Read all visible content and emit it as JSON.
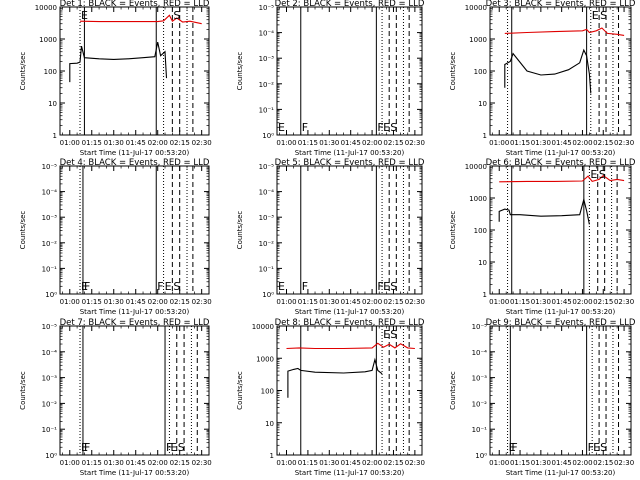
{
  "figure": {
    "xlabel": "Start Time (11-Jul-17 00:53:20)",
    "ylabel": "Counts/sec",
    "x_tick_labels": [
      "01:00",
      "01:15",
      "01:30",
      "01:45",
      "02:00",
      "02:15",
      "02:30"
    ],
    "log_tick_labels_full": [
      "1",
      "10",
      "100",
      "1000",
      "10000"
    ],
    "log_tick_labels_empty": [
      "10⁰",
      "10⁻¹",
      "10⁻²",
      "10⁻³",
      "10⁻⁴",
      "10⁻⁵"
    ],
    "colors": {
      "events": "#000000",
      "lld": "#e00000",
      "axes": "#000000"
    }
  },
  "chart_data": [
    {
      "type": "line",
      "title": "Det 1: BLACK = Events, RED = LLD",
      "scale": "log",
      "ylim": [
        1,
        10000
      ],
      "xlim": [
        "00:53:20",
        "02:35"
      ],
      "markers": [
        {
          "x": "01:07",
          "style": "dotted",
          "label": "E"
        },
        {
          "x": "01:10",
          "style": "solid",
          "label": ""
        },
        {
          "x": "01:59",
          "style": "solid",
          "label": ""
        },
        {
          "x": "02:04",
          "style": "dotted",
          "label": ""
        },
        {
          "x": "02:10",
          "style": "dashed",
          "label": "S"
        },
        {
          "x": "02:15",
          "style": "dashed",
          "label": ""
        },
        {
          "x": "02:20",
          "style": "dotted",
          "label": ""
        },
        {
          "x": "02:24",
          "style": "dashed",
          "label": ""
        }
      ],
      "series": [
        {
          "name": "Events",
          "color": "#000000",
          "points": [
            [
              "01:00",
              45
            ],
            [
              "01:00",
              170
            ],
            [
              "01:05",
              175
            ],
            [
              "01:07",
              190
            ],
            [
              "01:08",
              600
            ],
            [
              "01:10",
              260
            ],
            [
              "01:20",
              240
            ],
            [
              "01:30",
              230
            ],
            [
              "01:40",
              240
            ],
            [
              "01:50",
              260
            ],
            [
              "01:58",
              280
            ],
            [
              "02:00",
              800
            ],
            [
              "02:02",
              300
            ],
            [
              "02:05",
              400
            ],
            [
              "02:06",
              60
            ]
          ]
        },
        {
          "name": "LLD",
          "color": "#e00000",
          "points": [
            [
              "01:07",
              3600
            ],
            [
              "01:20",
              3500
            ],
            [
              "01:40",
              3500
            ],
            [
              "02:00",
              3500
            ],
            [
              "02:04",
              3700
            ],
            [
              "02:08",
              5500
            ],
            [
              "02:10",
              3600
            ],
            [
              "02:13",
              4500
            ],
            [
              "02:17",
              3400
            ],
            [
              "02:22",
              3600
            ],
            [
              "02:26",
              3300
            ],
            [
              "02:30",
              3000
            ]
          ]
        }
      ]
    },
    {
      "type": "line",
      "title": "Det 2: BLACK = Events, RED = LLD",
      "scale": "log_empty",
      "markers": [
        {
          "x": "00:53:20",
          "style": "solid",
          "label": "E"
        },
        {
          "x": "01:10",
          "style": "solid",
          "label": "F"
        },
        {
          "x": "02:03",
          "style": "solid",
          "label": "F"
        },
        {
          "x": "02:07",
          "style": "dotted",
          "label": "E"
        },
        {
          "x": "02:12",
          "style": "dashed",
          "label": "S"
        },
        {
          "x": "02:17",
          "style": "dashed",
          "label": ""
        },
        {
          "x": "02:22",
          "style": "dotted",
          "label": ""
        },
        {
          "x": "02:26",
          "style": "dashed",
          "label": ""
        }
      ],
      "series": []
    },
    {
      "type": "line",
      "title": "Det 3: BLACK = Events, RED = LLD",
      "scale": "log",
      "ylim": [
        1,
        10000
      ],
      "markers": [
        {
          "x": "01:06",
          "style": "dotted",
          "label": ""
        },
        {
          "x": "01:09",
          "style": "solid",
          "label": ""
        },
        {
          "x": "02:03",
          "style": "solid",
          "label": ""
        },
        {
          "x": "02:06",
          "style": "dotted",
          "label": "E"
        },
        {
          "x": "02:12",
          "style": "dashed",
          "label": "S"
        },
        {
          "x": "02:17",
          "style": "dashed",
          "label": ""
        },
        {
          "x": "02:22",
          "style": "dotted",
          "label": ""
        },
        {
          "x": "02:26",
          "style": "dashed",
          "label": ""
        }
      ],
      "series": [
        {
          "name": "Events",
          "color": "#000000",
          "points": [
            [
              "01:04",
              30
            ],
            [
              "01:04",
              160
            ],
            [
              "01:08",
              200
            ],
            [
              "01:10",
              350
            ],
            [
              "01:20",
              100
            ],
            [
              "01:30",
              75
            ],
            [
              "01:40",
              80
            ],
            [
              "01:50",
              110
            ],
            [
              "01:58",
              180
            ],
            [
              "02:01",
              450
            ],
            [
              "02:03",
              300
            ],
            [
              "02:05",
              80
            ],
            [
              "02:06",
              20
            ]
          ]
        },
        {
          "name": "LLD",
          "color": "#e00000",
          "points": [
            [
              "01:04",
              1500
            ],
            [
              "01:20",
              1600
            ],
            [
              "01:40",
              1700
            ],
            [
              "02:00",
              1800
            ],
            [
              "02:03",
              2000
            ],
            [
              "02:05",
              1600
            ],
            [
              "02:10",
              1800
            ],
            [
              "02:14",
              2200
            ],
            [
              "02:18",
              1500
            ],
            [
              "02:25",
              1400
            ],
            [
              "02:30",
              1300
            ]
          ]
        }
      ]
    },
    {
      "type": "line",
      "title": "Det 4: BLACK = Events, RED = LLD",
      "scale": "log_empty",
      "markers": [
        {
          "x": "01:07",
          "style": "dotted",
          "label": "E"
        },
        {
          "x": "01:09",
          "style": "solid",
          "label": "F"
        },
        {
          "x": "01:59",
          "style": "solid",
          "label": "F"
        },
        {
          "x": "02:04",
          "style": "dotted",
          "label": "E"
        },
        {
          "x": "02:10",
          "style": "dashed",
          "label": "S"
        },
        {
          "x": "02:15",
          "style": "dashed",
          "label": ""
        },
        {
          "x": "02:20",
          "style": "dotted",
          "label": ""
        },
        {
          "x": "02:24",
          "style": "dashed",
          "label": ""
        }
      ],
      "series": []
    },
    {
      "type": "line",
      "title": "Det 5: BLACK = Events, RED = LLD",
      "scale": "log_empty",
      "markers": [
        {
          "x": "00:53:20",
          "style": "solid",
          "label": "E"
        },
        {
          "x": "01:10",
          "style": "solid",
          "label": "F"
        },
        {
          "x": "02:03",
          "style": "solid",
          "label": "F"
        },
        {
          "x": "02:07",
          "style": "dotted",
          "label": "E"
        },
        {
          "x": "02:12",
          "style": "dashed",
          "label": "S"
        },
        {
          "x": "02:17",
          "style": "dashed",
          "label": ""
        },
        {
          "x": "02:22",
          "style": "dotted",
          "label": ""
        },
        {
          "x": "02:26",
          "style": "dashed",
          "label": ""
        }
      ],
      "series": []
    },
    {
      "type": "line",
      "title": "Det 6: BLACK = Events, RED = LLD",
      "scale": "log",
      "ylim": [
        1,
        10000
      ],
      "markers": [
        {
          "x": "01:06",
          "style": "dotted",
          "label": ""
        },
        {
          "x": "01:09",
          "style": "solid",
          "label": ""
        },
        {
          "x": "02:01",
          "style": "solid",
          "label": ""
        },
        {
          "x": "02:05",
          "style": "dotted",
          "label": "E"
        },
        {
          "x": "02:11",
          "style": "dashed",
          "label": "S"
        },
        {
          "x": "02:16",
          "style": "dashed",
          "label": ""
        },
        {
          "x": "02:21",
          "style": "dotted",
          "label": ""
        },
        {
          "x": "02:25",
          "style": "dashed",
          "label": ""
        }
      ],
      "series": [
        {
          "name": "Events",
          "color": "#000000",
          "points": [
            [
              "01:00",
              180
            ],
            [
              "01:00",
              380
            ],
            [
              "01:04",
              450
            ],
            [
              "01:07",
              420
            ],
            [
              "01:08",
              300
            ],
            [
              "01:15",
              300
            ],
            [
              "01:30",
              270
            ],
            [
              "01:45",
              280
            ],
            [
              "01:58",
              300
            ],
            [
              "02:01",
              900
            ],
            [
              "02:03",
              400
            ],
            [
              "02:05",
              150
            ]
          ]
        },
        {
          "name": "LLD",
          "color": "#e00000",
          "points": [
            [
              "01:00",
              3200
            ],
            [
              "01:20",
              3300
            ],
            [
              "01:40",
              3300
            ],
            [
              "02:00",
              3400
            ],
            [
              "02:04",
              4800
            ],
            [
              "02:07",
              3300
            ],
            [
              "02:12",
              3800
            ],
            [
              "02:15",
              5000
            ],
            [
              "02:20",
              3500
            ],
            [
              "02:25",
              3800
            ],
            [
              "02:30",
              3500
            ]
          ]
        }
      ]
    },
    {
      "type": "line",
      "title": "Det 7: BLACK = Events, RED = LLD",
      "scale": "log_empty",
      "markers": [
        {
          "x": "01:07",
          "style": "dotted",
          "label": "E"
        },
        {
          "x": "01:09",
          "style": "solid",
          "label": "F"
        },
        {
          "x": "02:05",
          "style": "solid",
          "label": "F"
        },
        {
          "x": "02:08",
          "style": "dotted",
          "label": "E"
        },
        {
          "x": "02:13",
          "style": "dashed",
          "label": "S"
        },
        {
          "x": "02:18",
          "style": "dashed",
          "label": ""
        },
        {
          "x": "02:23",
          "style": "dotted",
          "label": ""
        },
        {
          "x": "02:27",
          "style": "dashed",
          "label": ""
        }
      ],
      "series": []
    },
    {
      "type": "line",
      "title": "Det 8: BLACK = Events, RED = LLD",
      "scale": "log",
      "ylim": [
        1,
        10000
      ],
      "markers": [
        {
          "x": "00:53:20",
          "style": "solid",
          "label": ""
        },
        {
          "x": "01:10",
          "style": "solid",
          "label": ""
        },
        {
          "x": "02:03",
          "style": "solid",
          "label": ""
        },
        {
          "x": "02:07",
          "style": "dotted",
          "label": "E"
        },
        {
          "x": "02:12",
          "style": "dashed",
          "label": "S"
        },
        {
          "x": "02:17",
          "style": "dashed",
          "label": ""
        },
        {
          "x": "02:22",
          "style": "dotted",
          "label": ""
        },
        {
          "x": "02:26",
          "style": "dashed",
          "label": ""
        }
      ],
      "series": [
        {
          "name": "Events",
          "color": "#000000",
          "points": [
            [
              "01:01",
              60
            ],
            [
              "01:01",
              400
            ],
            [
              "01:05",
              450
            ],
            [
              "01:08",
              480
            ],
            [
              "01:10",
              420
            ],
            [
              "01:20",
              370
            ],
            [
              "01:40",
              350
            ],
            [
              "01:55",
              380
            ],
            [
              "02:00",
              420
            ],
            [
              "02:02",
              900
            ],
            [
              "02:04",
              420
            ],
            [
              "02:07",
              330
            ]
          ]
        },
        {
          "name": "LLD",
          "color": "#e00000",
          "points": [
            [
              "01:00",
              2000
            ],
            [
              "01:09",
              2100
            ],
            [
              "01:20",
              2000
            ],
            [
              "01:40",
              2000
            ],
            [
              "02:00",
              2100
            ],
            [
              "02:04",
              2900
            ],
            [
              "02:08",
              2200
            ],
            [
              "02:12",
              2700
            ],
            [
              "02:16",
              2100
            ],
            [
              "02:20",
              2800
            ],
            [
              "02:25",
              2100
            ],
            [
              "02:30",
              2000
            ]
          ]
        }
      ]
    },
    {
      "type": "line",
      "title": "Det 9: BLACK = Events, RED = LLD",
      "scale": "log_empty",
      "markers": [
        {
          "x": "01:06",
          "style": "dotted",
          "label": "E"
        },
        {
          "x": "01:08",
          "style": "solid",
          "label": "F"
        },
        {
          "x": "02:03",
          "style": "solid",
          "label": "F"
        },
        {
          "x": "02:07",
          "style": "dotted",
          "label": "E"
        },
        {
          "x": "02:12",
          "style": "dashed",
          "label": "S"
        },
        {
          "x": "02:17",
          "style": "dashed",
          "label": ""
        },
        {
          "x": "02:22",
          "style": "dotted",
          "label": ""
        },
        {
          "x": "02:26",
          "style": "dashed",
          "label": ""
        }
      ],
      "series": []
    }
  ]
}
